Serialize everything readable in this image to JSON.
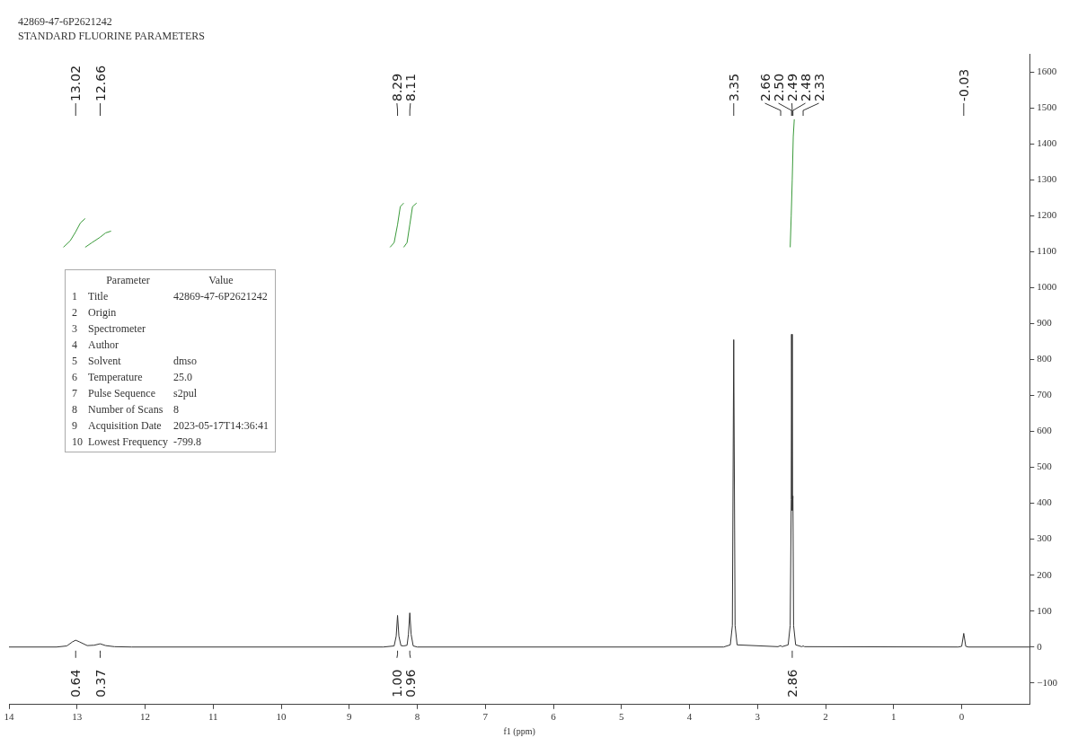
{
  "chart_data": {
    "type": "line",
    "title": "42869-47-6P2621242",
    "subtitle": "STANDARD FLUORINE PARAMETERS",
    "xlabel": "f1 (ppm)",
    "xlim": [
      14,
      -1
    ],
    "xticks": [
      14,
      13,
      12,
      11,
      10,
      9,
      8,
      7,
      6,
      5,
      4,
      3,
      2,
      1,
      0
    ],
    "ylim": [
      -160,
      1650
    ],
    "yticks": [
      -100,
      0,
      100,
      200,
      300,
      400,
      500,
      600,
      700,
      800,
      900,
      1000,
      1100,
      1200,
      1300,
      1400,
      1500,
      1600
    ],
    "grid": false,
    "legend": false,
    "marker": "none",
    "series": [
      {
        "color": "#333333",
        "x": [
          14,
          13.3,
          13.15,
          13.07,
          13.02,
          12.96,
          12.85,
          12.75,
          12.66,
          12.58,
          12.45,
          12.2,
          8.5,
          8.34,
          8.31,
          8.29,
          8.27,
          8.24,
          8.2,
          8.15,
          8.13,
          8.11,
          8.09,
          8.06,
          8,
          3.5,
          3.4,
          3.37,
          3.35,
          3.33,
          3.3,
          2.7,
          2.66,
          2.64,
          2.55,
          2.52,
          2.505,
          2.5,
          2.49,
          2.48,
          2.47,
          2.44,
          2.35,
          2.33,
          2.31,
          0.05,
          0,
          -0.03,
          -0.06,
          -0.1,
          -1
        ],
        "values": [
          0,
          0,
          3,
          14,
          19,
          14,
          4,
          5,
          9,
          4,
          1,
          0,
          0,
          3,
          30,
          88,
          30,
          4,
          3,
          5,
          35,
          95,
          35,
          3,
          0,
          0,
          6,
          60,
          855,
          60,
          6,
          1,
          4,
          1,
          6,
          60,
          410,
          870,
          380,
          420,
          60,
          6,
          1,
          3,
          1,
          0,
          2,
          38,
          2,
          0,
          0
        ]
      },
      {
        "color": "#3a9a3a",
        "x": [
          13.2,
          13.1,
          13.02,
          12.95,
          12.88
        ],
        "values": [
          1112,
          1130,
          1155,
          1180,
          1192
        ]
      },
      {
        "color": "#3a9a3a",
        "x": [
          12.88,
          12.78,
          12.66,
          12.58,
          12.5
        ],
        "values": [
          1112,
          1125,
          1140,
          1152,
          1157
        ]
      },
      {
        "color": "#3a9a3a",
        "x": [
          8.4,
          8.34,
          8.29,
          8.25,
          8.2
        ],
        "values": [
          1112,
          1125,
          1175,
          1225,
          1235
        ]
      },
      {
        "color": "#3a9a3a",
        "x": [
          8.2,
          8.15,
          8.11,
          8.07,
          8.01
        ],
        "values": [
          1112,
          1125,
          1175,
          1225,
          1235
        ]
      },
      {
        "color": "#3a9a3a",
        "x": [
          2.52,
          2.505,
          2.49,
          2.475,
          2.46
        ],
        "values": [
          1112,
          1200,
          1300,
          1420,
          1468
        ]
      }
    ],
    "annotations": [
      "\tParameter\tValue",
      "1\tTitle\t42869-47-6P2621242",
      "2\tOrigin\t",
      "3\tSpectrometer\t",
      "4\tAuthor\t",
      "5\tSolvent\tdmso",
      "6\tTemperature\t25.0",
      "7\tPulse Sequence\ts2pul",
      "8\tNumber of Scans\t8",
      "9\tAcquisition Date\t2023-05-17T14:36:41",
      "10\tLowest Frequency\t-799.8",
      {
        "text": "13.02",
        "x": 13.02
      },
      {
        "text": "12.66",
        "x": 12.66
      },
      {
        "text": "8.29",
        "x": 8.29
      },
      {
        "text": "8.11",
        "x": 8.11
      },
      {
        "text": "3.35",
        "x": 3.35
      },
      {
        "text": "2.66",
        "x": 2.66
      },
      {
        "text": "2.50",
        "x": 2.5
      },
      {
        "text": "2.49",
        "x": 2.49
      },
      {
        "text": "2.48",
        "x": 2.48
      },
      {
        "text": "2.33",
        "x": 2.33
      },
      {
        "text": "-0.03",
        "x": -0.03
      },
      {
        "text": "0.64",
        "x": 13.02
      },
      {
        "text": "0.37",
        "x": 12.66
      },
      {
        "text": "1.00",
        "x": 8.29
      },
      {
        "text": "0.96",
        "x": 8.11
      },
      {
        "text": "2.86",
        "x": 2.49
      }
    ]
  }
}
